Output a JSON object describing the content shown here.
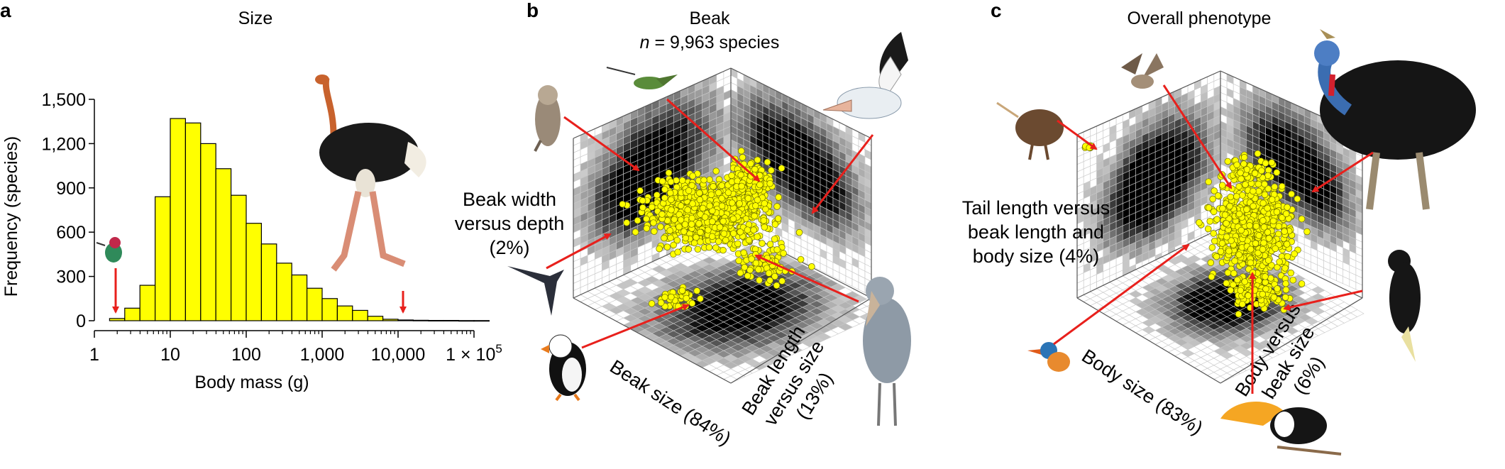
{
  "chart_data": [
    {
      "panel": "a",
      "type": "bar",
      "title": "Size",
      "xlabel": "Body mass (g)",
      "ylabel": "Frequency (species)",
      "x_scale": "log10",
      "ylim": [
        0,
        1500
      ],
      "xlim": [
        1,
        100000
      ],
      "y_ticks": [
        "0",
        "300",
        "600",
        "900",
        "1,200",
        "1,500"
      ],
      "y_tick_values": [
        0,
        300,
        600,
        900,
        1200,
        1500
      ],
      "x_ticks": [
        "1",
        "10",
        "100",
        "1,000",
        "10,000",
        "1 × 10^5"
      ],
      "x_tick_values": [
        1,
        10,
        100,
        1000,
        10000,
        100000
      ],
      "bins_log10_left": [
        0.2,
        0.4,
        0.6,
        0.8,
        1.0,
        1.2,
        1.4,
        1.6,
        1.8,
        2.0,
        2.2,
        2.4,
        2.6,
        2.8,
        3.0,
        3.2,
        3.4,
        3.6,
        3.8,
        4.0,
        4.2,
        4.4,
        4.6,
        4.8,
        5.0
      ],
      "bin_width_log10": 0.2,
      "values": [
        15,
        85,
        240,
        840,
        1370,
        1340,
        1200,
        1030,
        850,
        660,
        520,
        390,
        310,
        220,
        150,
        100,
        70,
        30,
        10,
        5,
        3,
        2,
        2,
        1,
        1
      ],
      "bar_color": "#ffff00",
      "annotations": [
        {
          "illustration": "hummingbird",
          "x_value": 1.8
        },
        {
          "illustration": "ostrich",
          "x_value": 15000
        }
      ]
    },
    {
      "panel": "b",
      "type": "scatter",
      "title": "Beak",
      "subtitle": "n = 9,963 species",
      "axis_labels": [
        "Beak size (84%)",
        "Beak length versus size (13%)",
        "Beak width versus depth (2%)"
      ],
      "point_color": "#ffff00",
      "projection_shading": "grayscale density heatmaps on the three back walls and floor"
    },
    {
      "panel": "c",
      "type": "scatter",
      "title": "Overall phenotype",
      "axis_labels": [
        "Body size (83%)",
        "Body versus beak size (6%)",
        "Tail length versus beak length and body size (4%)"
      ],
      "point_color": "#ffff00",
      "projection_shading": "grayscale density heatmaps on the three back walls and floor"
    }
  ],
  "panel_a": {
    "letter": "a",
    "title": "Size",
    "xlabel": "Body mass (g)",
    "ylabel": "Frequency (species)",
    "x_last_tick_base": "1 × 10",
    "x_last_tick_exp": "5"
  },
  "panel_b": {
    "letter": "b",
    "title": "Beak",
    "subtitle_n": "n",
    "subtitle_rest": " = 9,963 species",
    "label_1": "Beak size (84%)",
    "label_2a": "Beak length",
    "label_2b": "versus size",
    "label_2c": "(13%)",
    "label_3a": "Beak width",
    "label_3b": "versus depth",
    "label_3c": "(2%)"
  },
  "panel_c": {
    "letter": "c",
    "title": "Overall phenotype",
    "label_1": "Body size (83%)",
    "label_2a": "Body versus",
    "label_2b": "beak size",
    "label_2c": "(6%)",
    "label_3a": "Tail length versus",
    "label_3b": "beak length and",
    "label_3c": "body size (4%)"
  },
  "colors": {
    "bar": "#ffff00",
    "arrow": "#e8201c",
    "point": "#ffff00"
  },
  "icons": [
    "hummingbird-icon",
    "ostrich-icon",
    "owl-icon",
    "pelican-icon",
    "swift-icon",
    "puffin-icon",
    "shoebill-icon",
    "kiwi-icon",
    "plover-icon",
    "cassowary-icon",
    "kingfisher-icon",
    "toucan-icon",
    "cockatoo-icon"
  ]
}
